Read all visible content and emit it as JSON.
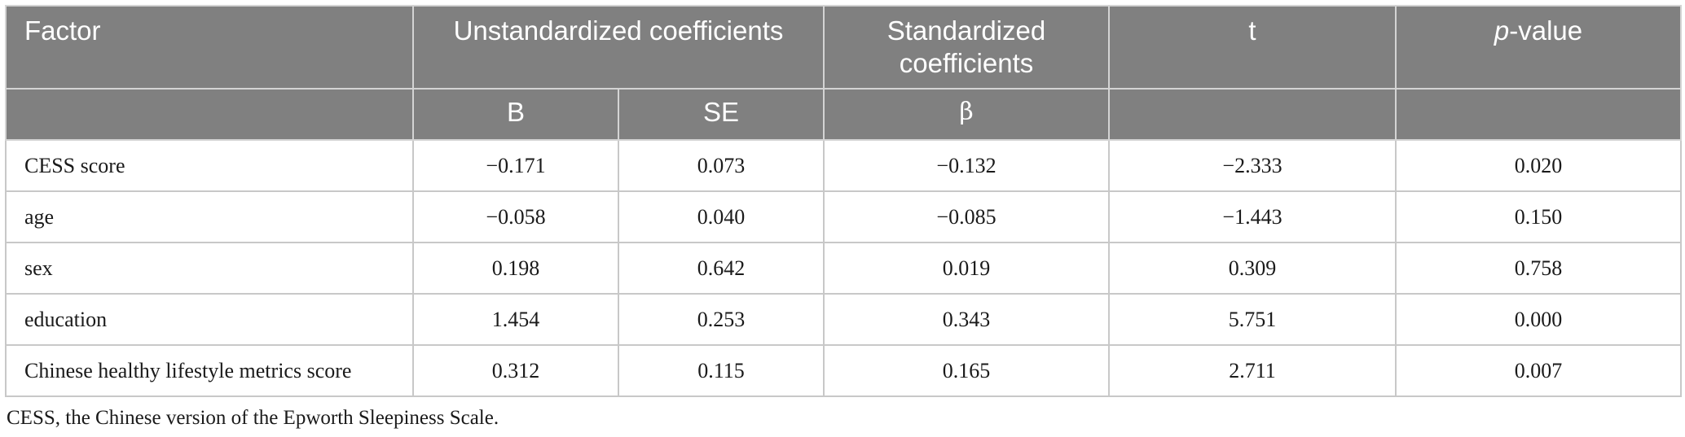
{
  "table": {
    "header_row1": {
      "factor": "Factor",
      "unstandardized": "Unstandardized coefficients",
      "standardized": "Standardized coefficients",
      "t": "t",
      "p_value_italic": "p",
      "p_value_rest": "-value"
    },
    "header_row2": {
      "b": "B",
      "se": "SE",
      "beta": "β"
    },
    "rows": [
      {
        "factor": "CESS score",
        "b": "−0.171",
        "se": "0.073",
        "beta": "−0.132",
        "t": "−2.333",
        "p": "0.020"
      },
      {
        "factor": "age",
        "b": "−0.058",
        "se": "0.040",
        "beta": "−0.085",
        "t": "−1.443",
        "p": "0.150"
      },
      {
        "factor": "sex",
        "b": "0.198",
        "se": "0.642",
        "beta": "0.019",
        "t": "0.309",
        "p": "0.758"
      },
      {
        "factor": "education",
        "b": "1.454",
        "se": "0.253",
        "beta": "0.343",
        "t": "5.751",
        "p": "0.000"
      },
      {
        "factor": "Chinese healthy lifestyle metrics score",
        "b": "0.312",
        "se": "0.115",
        "beta": "0.165",
        "t": "2.711",
        "p": "0.007"
      }
    ],
    "footnote": "CESS, the Chinese version of the Epworth Sleepiness Scale."
  }
}
